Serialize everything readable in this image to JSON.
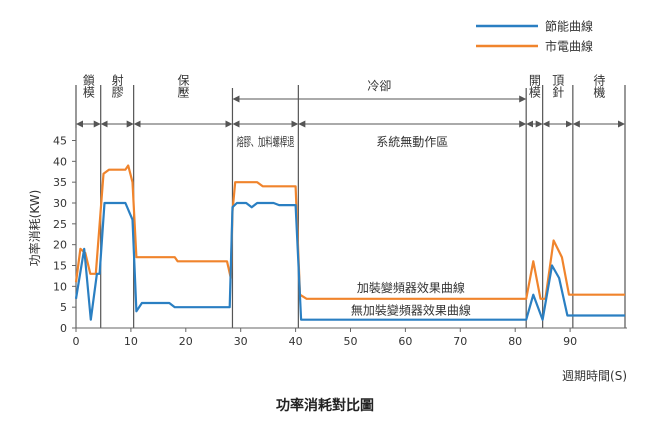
{
  "chart_data": {
    "type": "line",
    "title": "功率消耗對比圖",
    "xlabel": "週期時間(S)",
    "ylabel": "功率消耗(KW)",
    "xlim": [
      0,
      100
    ],
    "ylim": [
      0,
      48
    ],
    "xticks": [
      0,
      10,
      20,
      30,
      40,
      50,
      60,
      70,
      80,
      90
    ],
    "yticks": [
      0,
      5,
      10,
      15,
      20,
      25,
      30,
      35,
      40,
      45
    ],
    "grid": false,
    "legend": {
      "position": "top-right"
    },
    "series": [
      {
        "name": "節能曲線",
        "inline_label": "無加裝變頻器效果曲線",
        "color": "#2a7fc2",
        "points": [
          [
            0,
            7
          ],
          [
            1.5,
            19
          ],
          [
            2.7,
            2
          ],
          [
            3.8,
            13
          ],
          [
            4.3,
            13
          ],
          [
            5.2,
            30
          ],
          [
            9,
            30
          ],
          [
            10.3,
            26
          ],
          [
            11,
            4
          ],
          [
            12,
            6
          ],
          [
            17,
            6
          ],
          [
            18,
            5
          ],
          [
            28,
            5
          ],
          [
            28.5,
            29
          ],
          [
            29.3,
            30
          ],
          [
            31,
            30
          ],
          [
            32,
            29
          ],
          [
            33,
            30
          ],
          [
            36,
            30
          ],
          [
            37,
            29.5
          ],
          [
            40,
            29.5
          ],
          [
            41,
            2
          ],
          [
            82,
            2
          ],
          [
            83.3,
            8
          ],
          [
            85,
            2
          ],
          [
            86.7,
            15
          ],
          [
            88,
            12
          ],
          [
            89.5,
            3
          ],
          [
            100,
            3
          ]
        ]
      },
      {
        "name": "市電曲線",
        "inline_label": "加裝變頻器效果曲線",
        "color": "#f0842c",
        "points": [
          [
            0,
            11
          ],
          [
            0.8,
            19
          ],
          [
            1.7,
            18
          ],
          [
            2.6,
            13
          ],
          [
            3.6,
            13
          ],
          [
            5,
            37
          ],
          [
            6,
            38
          ],
          [
            9,
            38
          ],
          [
            9.5,
            39
          ],
          [
            10.3,
            35
          ],
          [
            11,
            17
          ],
          [
            18,
            17
          ],
          [
            18.5,
            16
          ],
          [
            27.5,
            16
          ],
          [
            28.2,
            12
          ],
          [
            28.5,
            28
          ],
          [
            29,
            35
          ],
          [
            33,
            35
          ],
          [
            34,
            34
          ],
          [
            40,
            34
          ],
          [
            40.8,
            8
          ],
          [
            42,
            7
          ],
          [
            82,
            7
          ],
          [
            83.3,
            16
          ],
          [
            84.6,
            7
          ],
          [
            85.5,
            7
          ],
          [
            87,
            21
          ],
          [
            88.5,
            17
          ],
          [
            89.8,
            8
          ],
          [
            100,
            8
          ]
        ]
      }
    ],
    "phases": [
      {
        "label": "鎖模",
        "start": 0,
        "end": 4.5
      },
      {
        "label": "射膠",
        "start": 4.5,
        "end": 10.5
      },
      {
        "label": "保壓",
        "start": 10.5,
        "end": 28.5
      },
      {
        "label": "熔膠、加料螺桿退",
        "start": 28.5,
        "end": 40.5
      },
      {
        "label": "系統無動作區",
        "start": 40.5,
        "end": 82
      }
    ],
    "upper_phases": [
      {
        "label": "冷卻",
        "start": 28.5,
        "end": 82
      }
    ],
    "end_phases": [
      {
        "label": "開模",
        "start": 82,
        "end": 85
      },
      {
        "label": "頂針",
        "start": 85,
        "end": 90.5
      },
      {
        "label": "待機",
        "start": 90.5,
        "end": 100
      }
    ]
  }
}
